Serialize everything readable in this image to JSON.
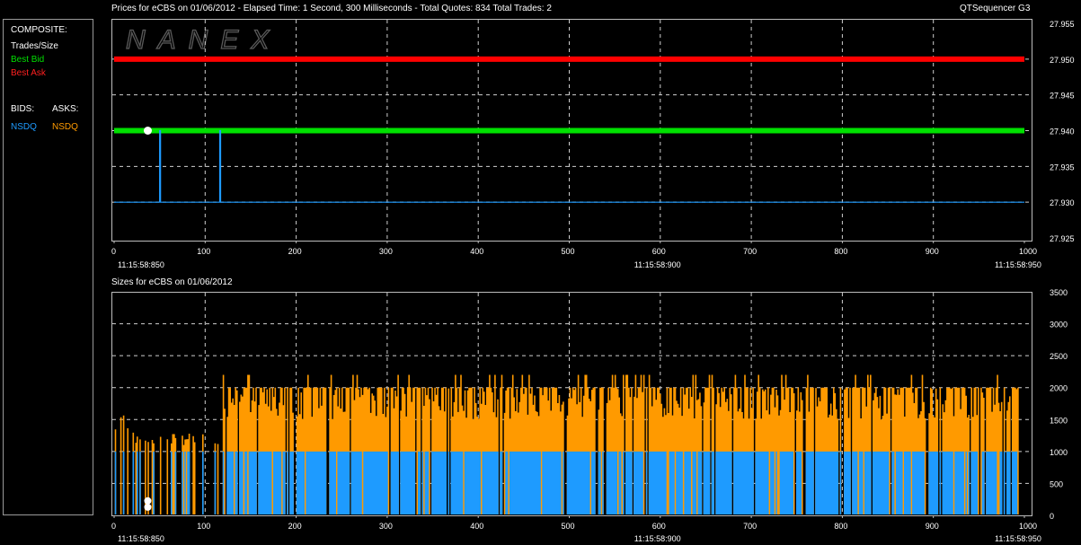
{
  "header": {
    "title": "Prices for  eCBS  on  01/06/2012  -  Elapsed Time: 1 Second, 300 Milliseconds  -  Total Quotes: 834  Total Trades: 2",
    "app_name": "QTSequencer G3",
    "sizes_title": "Sizes for  eCBS  on  01/06/2012",
    "watermark": "NANEX"
  },
  "legend": {
    "composite": "COMPOSITE:",
    "trades": "Trades/Size",
    "best_bid": "Best Bid",
    "best_ask": "Best Ask",
    "bids": "BIDS:",
    "asks": "ASKS:",
    "bid_exchange": "NSDQ",
    "ask_exchange": "NSDQ"
  },
  "colors": {
    "best_bid": "#00e000",
    "best_ask": "#ff0000",
    "bid": "#1e9bff",
    "ask": "#ff9a00",
    "trade": "#ffffff"
  },
  "chart_data": [
    {
      "type": "line",
      "title": "Prices for  eCBS  on  01/06/2012",
      "xlim": [
        0,
        1000
      ],
      "ylim": [
        27.925,
        27.955
      ],
      "x_ticks": [
        0,
        100,
        200,
        300,
        400,
        500,
        600,
        700,
        800,
        900,
        1000
      ],
      "y_ticks": [
        "27.925",
        "27.930",
        "27.935",
        "27.940",
        "27.945",
        "27.950",
        "27.955"
      ],
      "time_labels": [
        {
          "x": 0,
          "label": "11:15:58:850"
        },
        {
          "x": 600,
          "label": "11:15:58:900"
        },
        {
          "x": 1000,
          "label": "11:15:58:950"
        }
      ],
      "series": [
        {
          "name": "Best Ask",
          "color": "#ff0000",
          "points": [
            [
              0,
              27.95
            ],
            [
              1000,
              27.95
            ]
          ]
        },
        {
          "name": "Best Bid",
          "color": "#00e000",
          "points": [
            [
              0,
              27.94
            ],
            [
              1000,
              27.94
            ]
          ]
        },
        {
          "name": "NSDQ",
          "color": "#1e9bff",
          "points": [
            [
              0,
              27.93
            ],
            [
              50,
              27.93
            ],
            [
              50,
              27.94
            ],
            [
              51,
              27.94
            ],
            [
              51,
              27.93
            ],
            [
              116,
              27.93
            ],
            [
              116,
              27.94
            ],
            [
              117,
              27.94
            ],
            [
              117,
              27.93
            ],
            [
              1000,
              27.93
            ]
          ]
        }
      ],
      "trades": [
        {
          "x": 37,
          "price": 27.94
        }
      ],
      "grid": true
    },
    {
      "type": "bar",
      "title": "Sizes for  eCBS  on  01/06/2012",
      "xlim": [
        0,
        1000
      ],
      "ylim": [
        0,
        3500
      ],
      "x_ticks": [
        0,
        100,
        200,
        300,
        400,
        500,
        600,
        700,
        800,
        900,
        1000
      ],
      "y_ticks": [
        0,
        500,
        1000,
        1500,
        2000,
        2500,
        3000,
        3500
      ],
      "time_labels": [
        {
          "x": 0,
          "label": "11:15:58:850"
        },
        {
          "x": 600,
          "label": "11:15:58:900"
        },
        {
          "x": 1000,
          "label": "11:15:58:950"
        }
      ],
      "series": [
        {
          "name": "NSDQ",
          "color": "#1e9bff",
          "typical_value": 1000
        },
        {
          "name": "NSDQ",
          "color": "#ff9a00",
          "typical_value": 2000,
          "max_value": 2200
        }
      ],
      "trades": [
        {
          "x": 37,
          "size": 100
        },
        {
          "x": 37,
          "size": 200
        }
      ],
      "grid": true
    }
  ]
}
